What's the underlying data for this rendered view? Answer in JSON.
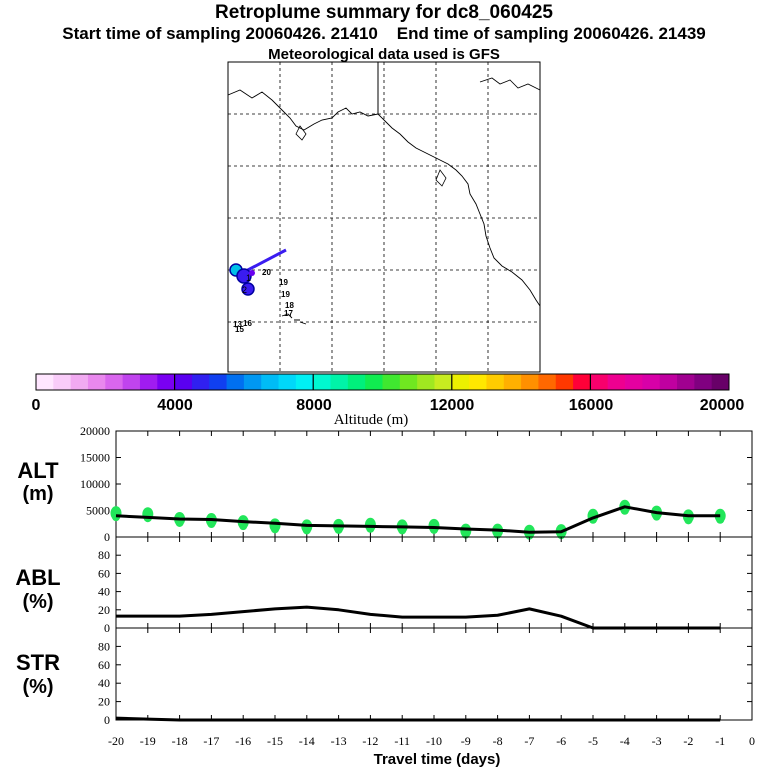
{
  "header": {
    "title": "Retroplume summary for dc8_060425",
    "start_label": "Start time of sampling 20060426. 21410",
    "end_label": "End time of sampling 20060426. 21439",
    "met_label": "Meteorological data used is GFS"
  },
  "map": {
    "trajectory_labels": [
      "20",
      "19",
      "19",
      "18",
      "17",
      "16",
      "15",
      "14",
      "13"
    ],
    "trajectory_markers": [
      "1",
      "2"
    ]
  },
  "colorbar": {
    "label": "Altitude (m)",
    "ticks": [
      "0",
      "4000",
      "8000",
      "12000",
      "16000",
      "20000"
    ],
    "colors": [
      "#ffe6ff",
      "#f9ccf9",
      "#f1aaf1",
      "#e988ee",
      "#d966ee",
      "#c044ee",
      "#a01cf0",
      "#7a00f2",
      "#5a00f0",
      "#3020f0",
      "#1040f0",
      "#0070f0",
      "#0098f2",
      "#00bcf6",
      "#00d8fa",
      "#00f0f4",
      "#00f8d0",
      "#00f4a8",
      "#00f07c",
      "#10ec50",
      "#40e830",
      "#70e820",
      "#a0e820",
      "#c8ec20",
      "#ecf000",
      "#ffe800",
      "#ffcc00",
      "#ffb000",
      "#ff9000",
      "#ff6800",
      "#ff3800",
      "#ff0038",
      "#f8006c",
      "#ee0090",
      "#e400a0",
      "#d800a8",
      "#c000a0",
      "#a00090",
      "#800080",
      "#680068"
    ]
  },
  "chart_data": [
    {
      "type": "line",
      "title": "ALT",
      "ylabel": "ALT (m)",
      "xlabel": "Travel time (days)",
      "ylim": [
        0,
        20000
      ],
      "yticks": [
        "0",
        "5000",
        "10000",
        "15000",
        "20000"
      ],
      "x": [
        -20,
        -19,
        -18,
        -17,
        -16,
        -15,
        -14,
        -13,
        -12,
        -11,
        -10,
        -9,
        -8,
        -7,
        -6,
        -5,
        -4,
        -3,
        -2,
        -1
      ],
      "series": [
        {
          "name": "median altitude",
          "values": [
            4000,
            3700,
            3400,
            3300,
            2900,
            2600,
            2200,
            2100,
            2000,
            1900,
            1800,
            1500,
            1300,
            900,
            1000,
            3600,
            5700,
            4600,
            4000,
            4000
          ]
        }
      ],
      "scatter_color": "#22e65a",
      "scatter_values": [
        4500,
        4300,
        3400,
        3200,
        2800,
        2200,
        2000,
        2100,
        2300,
        2000,
        2100,
        1200,
        1200,
        1000,
        1100,
        4000,
        5700,
        4600,
        3900,
        4000
      ]
    },
    {
      "type": "line",
      "title": "ABL",
      "ylabel": "ABL (%)",
      "ylim": [
        0,
        100
      ],
      "yticks": [
        "0",
        "20",
        "40",
        "60",
        "80"
      ],
      "x": [
        -20,
        -19,
        -18,
        -17,
        -16,
        -15,
        -14,
        -13,
        -12,
        -11,
        -10,
        -9,
        -8,
        -7,
        -6,
        -5,
        -4,
        -3,
        -2,
        -1
      ],
      "series": [
        {
          "name": "fraction in boundary layer",
          "values": [
            13,
            13,
            13,
            15,
            18,
            21,
            23,
            20,
            15,
            12,
            12,
            12,
            14,
            21,
            13,
            0,
            0,
            0,
            0,
            0
          ]
        }
      ]
    },
    {
      "type": "line",
      "title": "STR",
      "ylabel": "STR (%)",
      "ylim": [
        0,
        100
      ],
      "yticks": [
        "0",
        "20",
        "40",
        "60",
        "80"
      ],
      "x": [
        -20,
        -19,
        -18,
        -17,
        -16,
        -15,
        -14,
        -13,
        -12,
        -11,
        -10,
        -9,
        -8,
        -7,
        -6,
        -5,
        -4,
        -3,
        -2,
        -1
      ],
      "series": [
        {
          "name": "fraction in stratosphere",
          "values": [
            2,
            1,
            0,
            0,
            0,
            0,
            0,
            0,
            0,
            0,
            0,
            0,
            0,
            0,
            0,
            0,
            0,
            0,
            0,
            0
          ]
        }
      ]
    }
  ],
  "xaxis": {
    "label": "Travel time (days)",
    "ticks": [
      "-20",
      "-19",
      "-18",
      "-17",
      "-16",
      "-15",
      "-14",
      "-13",
      "-12",
      "-11",
      "-10",
      "-9",
      "-8",
      "-7",
      "-6",
      "-5",
      "-4",
      "-3",
      "-2",
      "-1",
      "0"
    ]
  },
  "panel_labels": {
    "alt": [
      "ALT",
      "(m)"
    ],
    "abl": [
      "ABL",
      "(%)"
    ],
    "str": [
      "STR",
      "(%)"
    ]
  }
}
